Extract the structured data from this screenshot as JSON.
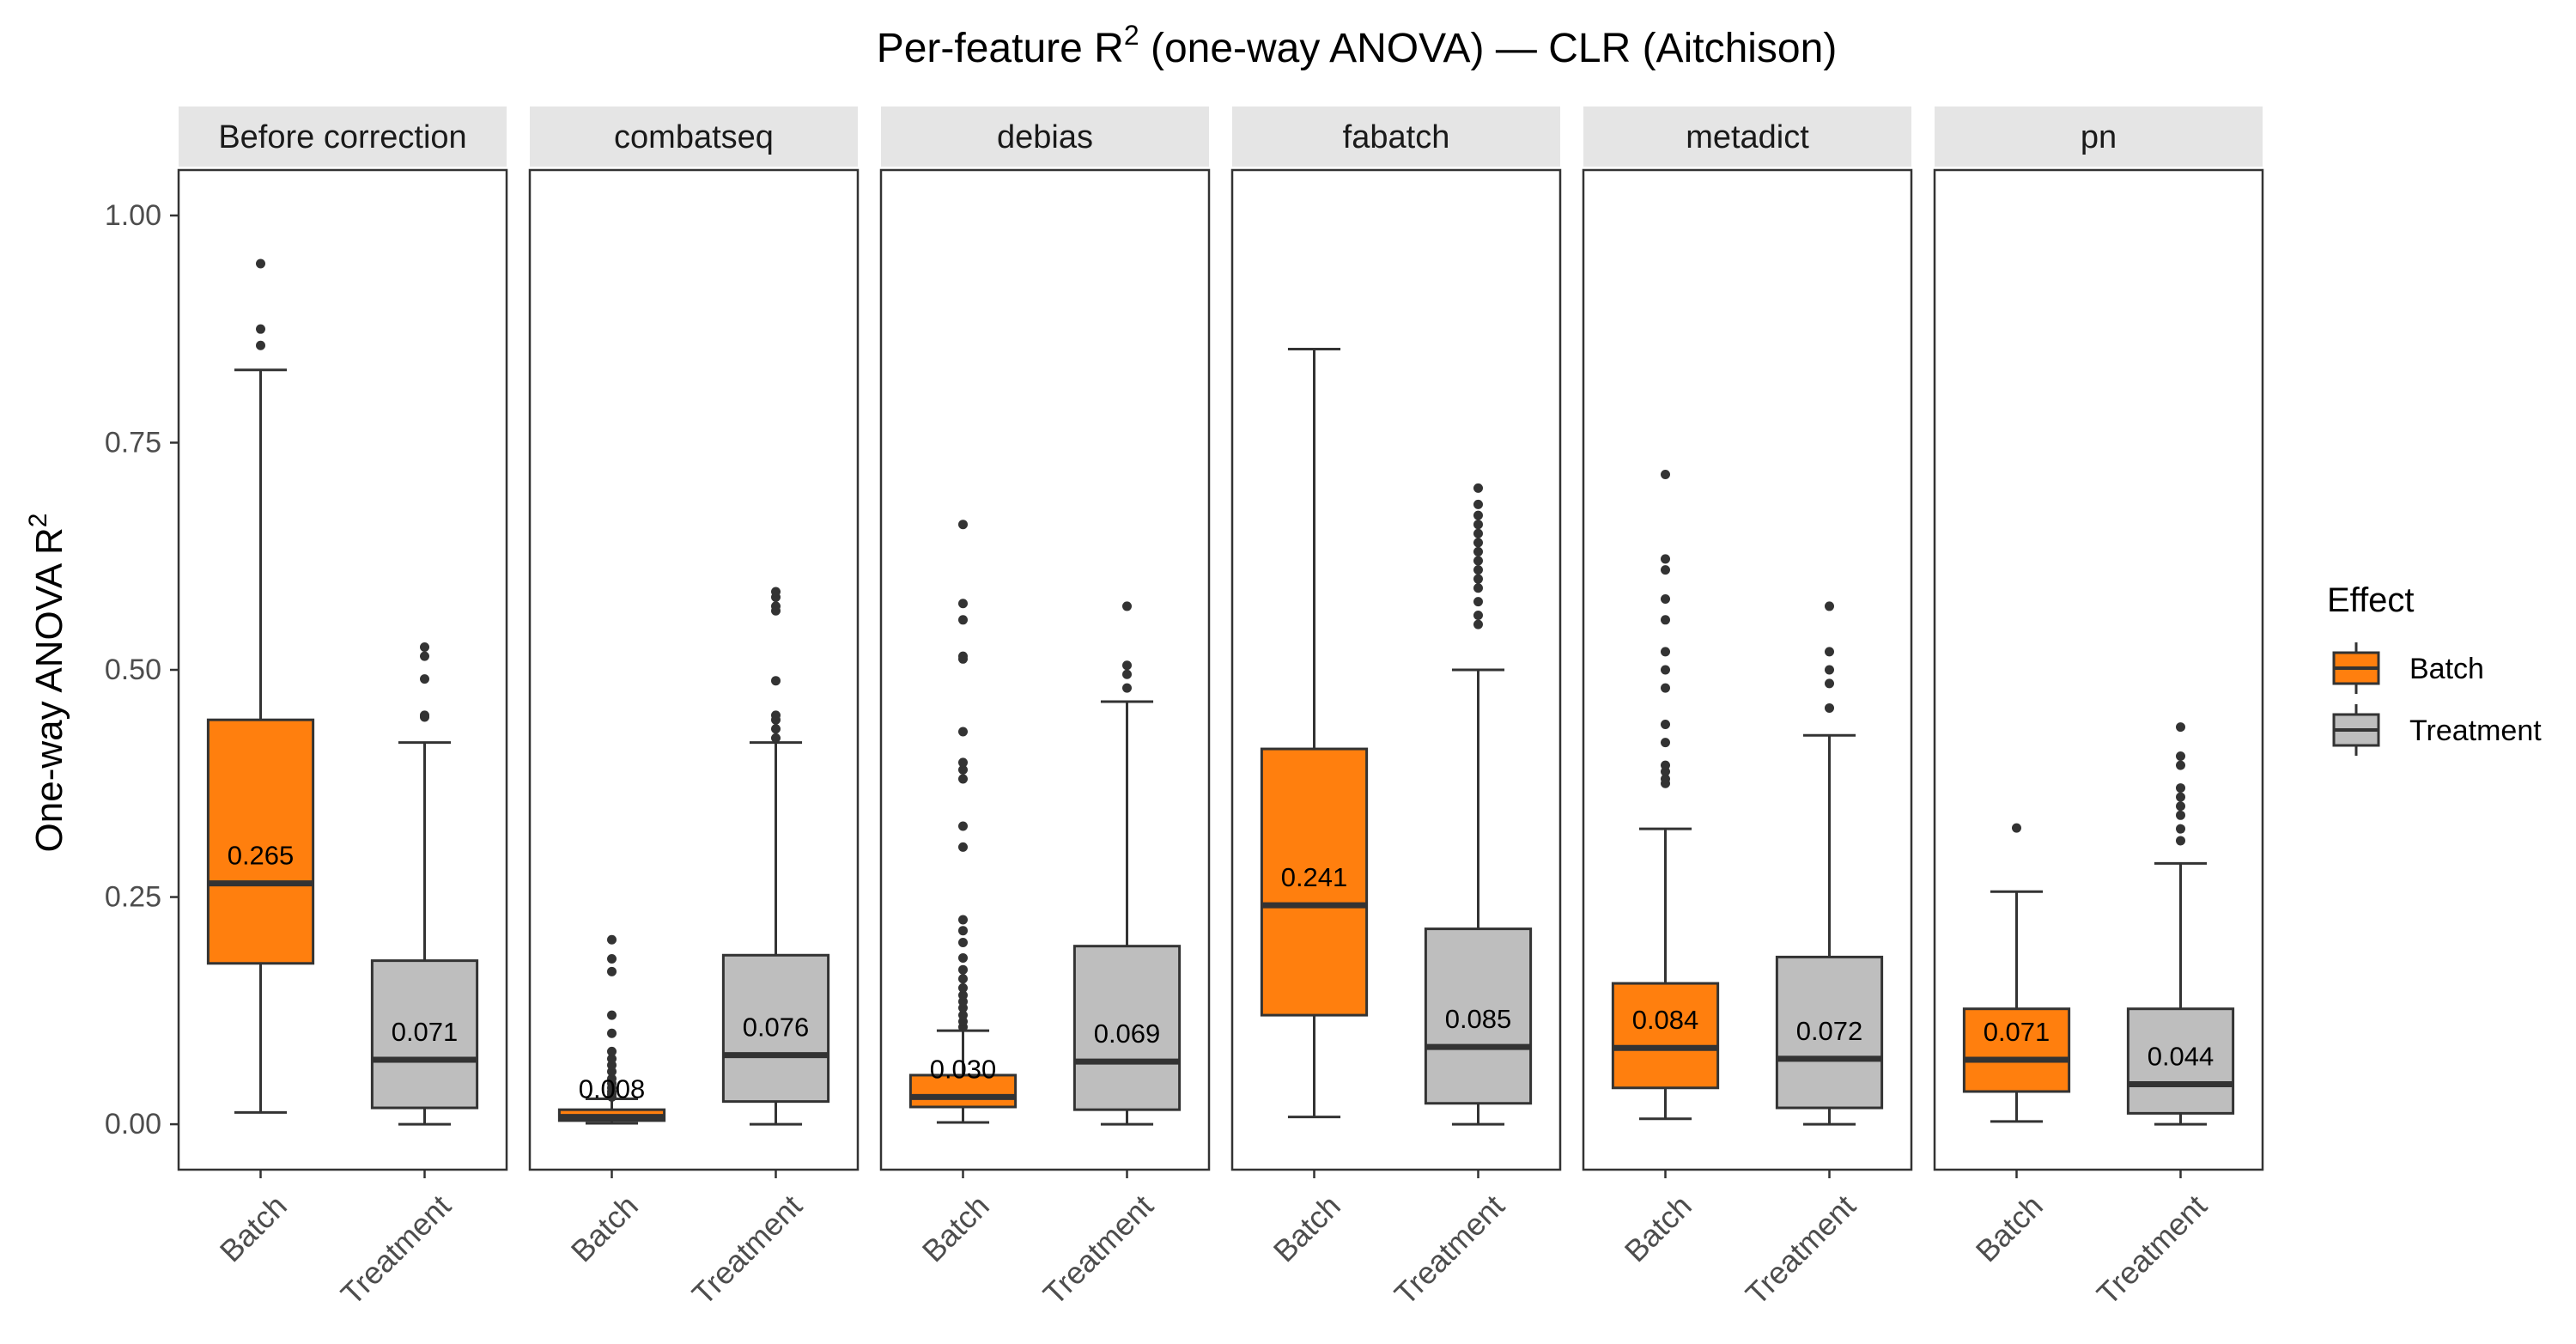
{
  "chart_data": {
    "type": "boxplot",
    "title_main": "Per-feature R",
    "title_sup": "2",
    "title_rest": " (one-way ANOVA) — CLR (Aitchison)",
    "ylabel_main": "One-way ANOVA R",
    "ylabel_sup": "2",
    "ylim": [
      -0.05,
      1.05
    ],
    "yticks": [
      0,
      0.25,
      0.5,
      0.75,
      1.0
    ],
    "ytick_labels": [
      "0.00",
      "0.25",
      "0.50",
      "0.75",
      "1.00"
    ],
    "categories": [
      "Batch",
      "Treatment"
    ],
    "colors": {
      "Batch": "#FF7F0E",
      "Treatment": "#BEBEBE"
    },
    "legend": {
      "title": "Effect",
      "placement": "right",
      "entries": [
        {
          "name": "Batch",
          "color": "#FF7F0E"
        },
        {
          "name": "Treatment",
          "color": "#BEBEBE"
        }
      ]
    },
    "panels": [
      {
        "name": "Before correction",
        "boxes": [
          {
            "category": "Batch",
            "min": 0.013,
            "q1": 0.177,
            "median": 0.265,
            "q3": 0.445,
            "max": 0.83,
            "label": "0.265",
            "outliers": [
              0.857,
              0.875,
              0.947
            ]
          },
          {
            "category": "Treatment",
            "min": 0.0,
            "q1": 0.018,
            "median": 0.071,
            "q3": 0.18,
            "max": 0.42,
            "label": "0.071",
            "outliers": [
              0.448,
              0.45,
              0.49,
              0.515,
              0.525
            ]
          }
        ]
      },
      {
        "name": "combatseq",
        "boxes": [
          {
            "category": "Batch",
            "min": 0.001,
            "q1": 0.004,
            "median": 0.008,
            "q3": 0.016,
            "max": 0.028,
            "label": "0.008",
            "outliers": [
              0.03,
              0.033,
              0.036,
              0.04,
              0.045,
              0.05,
              0.058,
              0.065,
              0.072,
              0.08,
              0.1,
              0.12,
              0.168,
              0.182,
              0.203
            ]
          },
          {
            "category": "Treatment",
            "min": 0.0,
            "q1": 0.025,
            "median": 0.076,
            "q3": 0.186,
            "max": 0.42,
            "label": "0.076",
            "outliers": [
              0.425,
              0.435,
              0.445,
              0.45,
              0.488,
              0.565,
              0.57,
              0.58,
              0.586
            ]
          }
        ]
      },
      {
        "name": "debias",
        "boxes": [
          {
            "category": "Batch",
            "min": 0.002,
            "q1": 0.019,
            "median": 0.03,
            "q3": 0.054,
            "max": 0.103,
            "label": "0.030",
            "outliers": [
              0.107,
              0.113,
              0.12,
              0.128,
              0.135,
              0.142,
              0.15,
              0.16,
              0.17,
              0.183,
              0.2,
              0.213,
              0.225,
              0.305,
              0.328,
              0.38,
              0.39,
              0.398,
              0.432,
              0.512,
              0.515,
              0.555,
              0.573,
              0.66
            ]
          },
          {
            "category": "Treatment",
            "min": 0.0,
            "q1": 0.016,
            "median": 0.069,
            "q3": 0.196,
            "max": 0.465,
            "label": "0.069",
            "outliers": [
              0.48,
              0.495,
              0.505,
              0.57
            ]
          }
        ]
      },
      {
        "name": "fabatch",
        "boxes": [
          {
            "category": "Batch",
            "min": 0.008,
            "q1": 0.12,
            "median": 0.241,
            "q3": 0.413,
            "max": 0.853,
            "label": "0.241",
            "outliers": []
          },
          {
            "category": "Treatment",
            "min": 0.0,
            "q1": 0.023,
            "median": 0.085,
            "q3": 0.215,
            "max": 0.5,
            "label": "0.085",
            "outliers": [
              0.55,
              0.56,
              0.575,
              0.59,
              0.6,
              0.61,
              0.62,
              0.63,
              0.64,
              0.65,
              0.66,
              0.67,
              0.682,
              0.7
            ]
          }
        ]
      },
      {
        "name": "metadict",
        "boxes": [
          {
            "category": "Batch",
            "min": 0.006,
            "q1": 0.04,
            "median": 0.084,
            "q3": 0.155,
            "max": 0.325,
            "label": "0.084",
            "outliers": [
              0.375,
              0.38,
              0.388,
              0.395,
              0.42,
              0.44,
              0.48,
              0.5,
              0.52,
              0.555,
              0.578,
              0.61,
              0.622,
              0.715
            ]
          },
          {
            "category": "Treatment",
            "min": 0.0,
            "q1": 0.018,
            "median": 0.072,
            "q3": 0.184,
            "max": 0.428,
            "label": "0.072",
            "outliers": [
              0.458,
              0.485,
              0.5,
              0.52,
              0.57
            ]
          }
        ]
      },
      {
        "name": "pn",
        "boxes": [
          {
            "category": "Batch",
            "min": 0.003,
            "q1": 0.036,
            "median": 0.071,
            "q3": 0.127,
            "max": 0.256,
            "label": "0.071",
            "outliers": [
              0.326
            ]
          },
          {
            "category": "Treatment",
            "min": 0.0,
            "q1": 0.012,
            "median": 0.044,
            "q3": 0.127,
            "max": 0.287,
            "label": "0.044",
            "outliers": [
              0.312,
              0.325,
              0.34,
              0.35,
              0.36,
              0.37,
              0.395,
              0.405,
              0.437
            ]
          }
        ]
      }
    ]
  }
}
